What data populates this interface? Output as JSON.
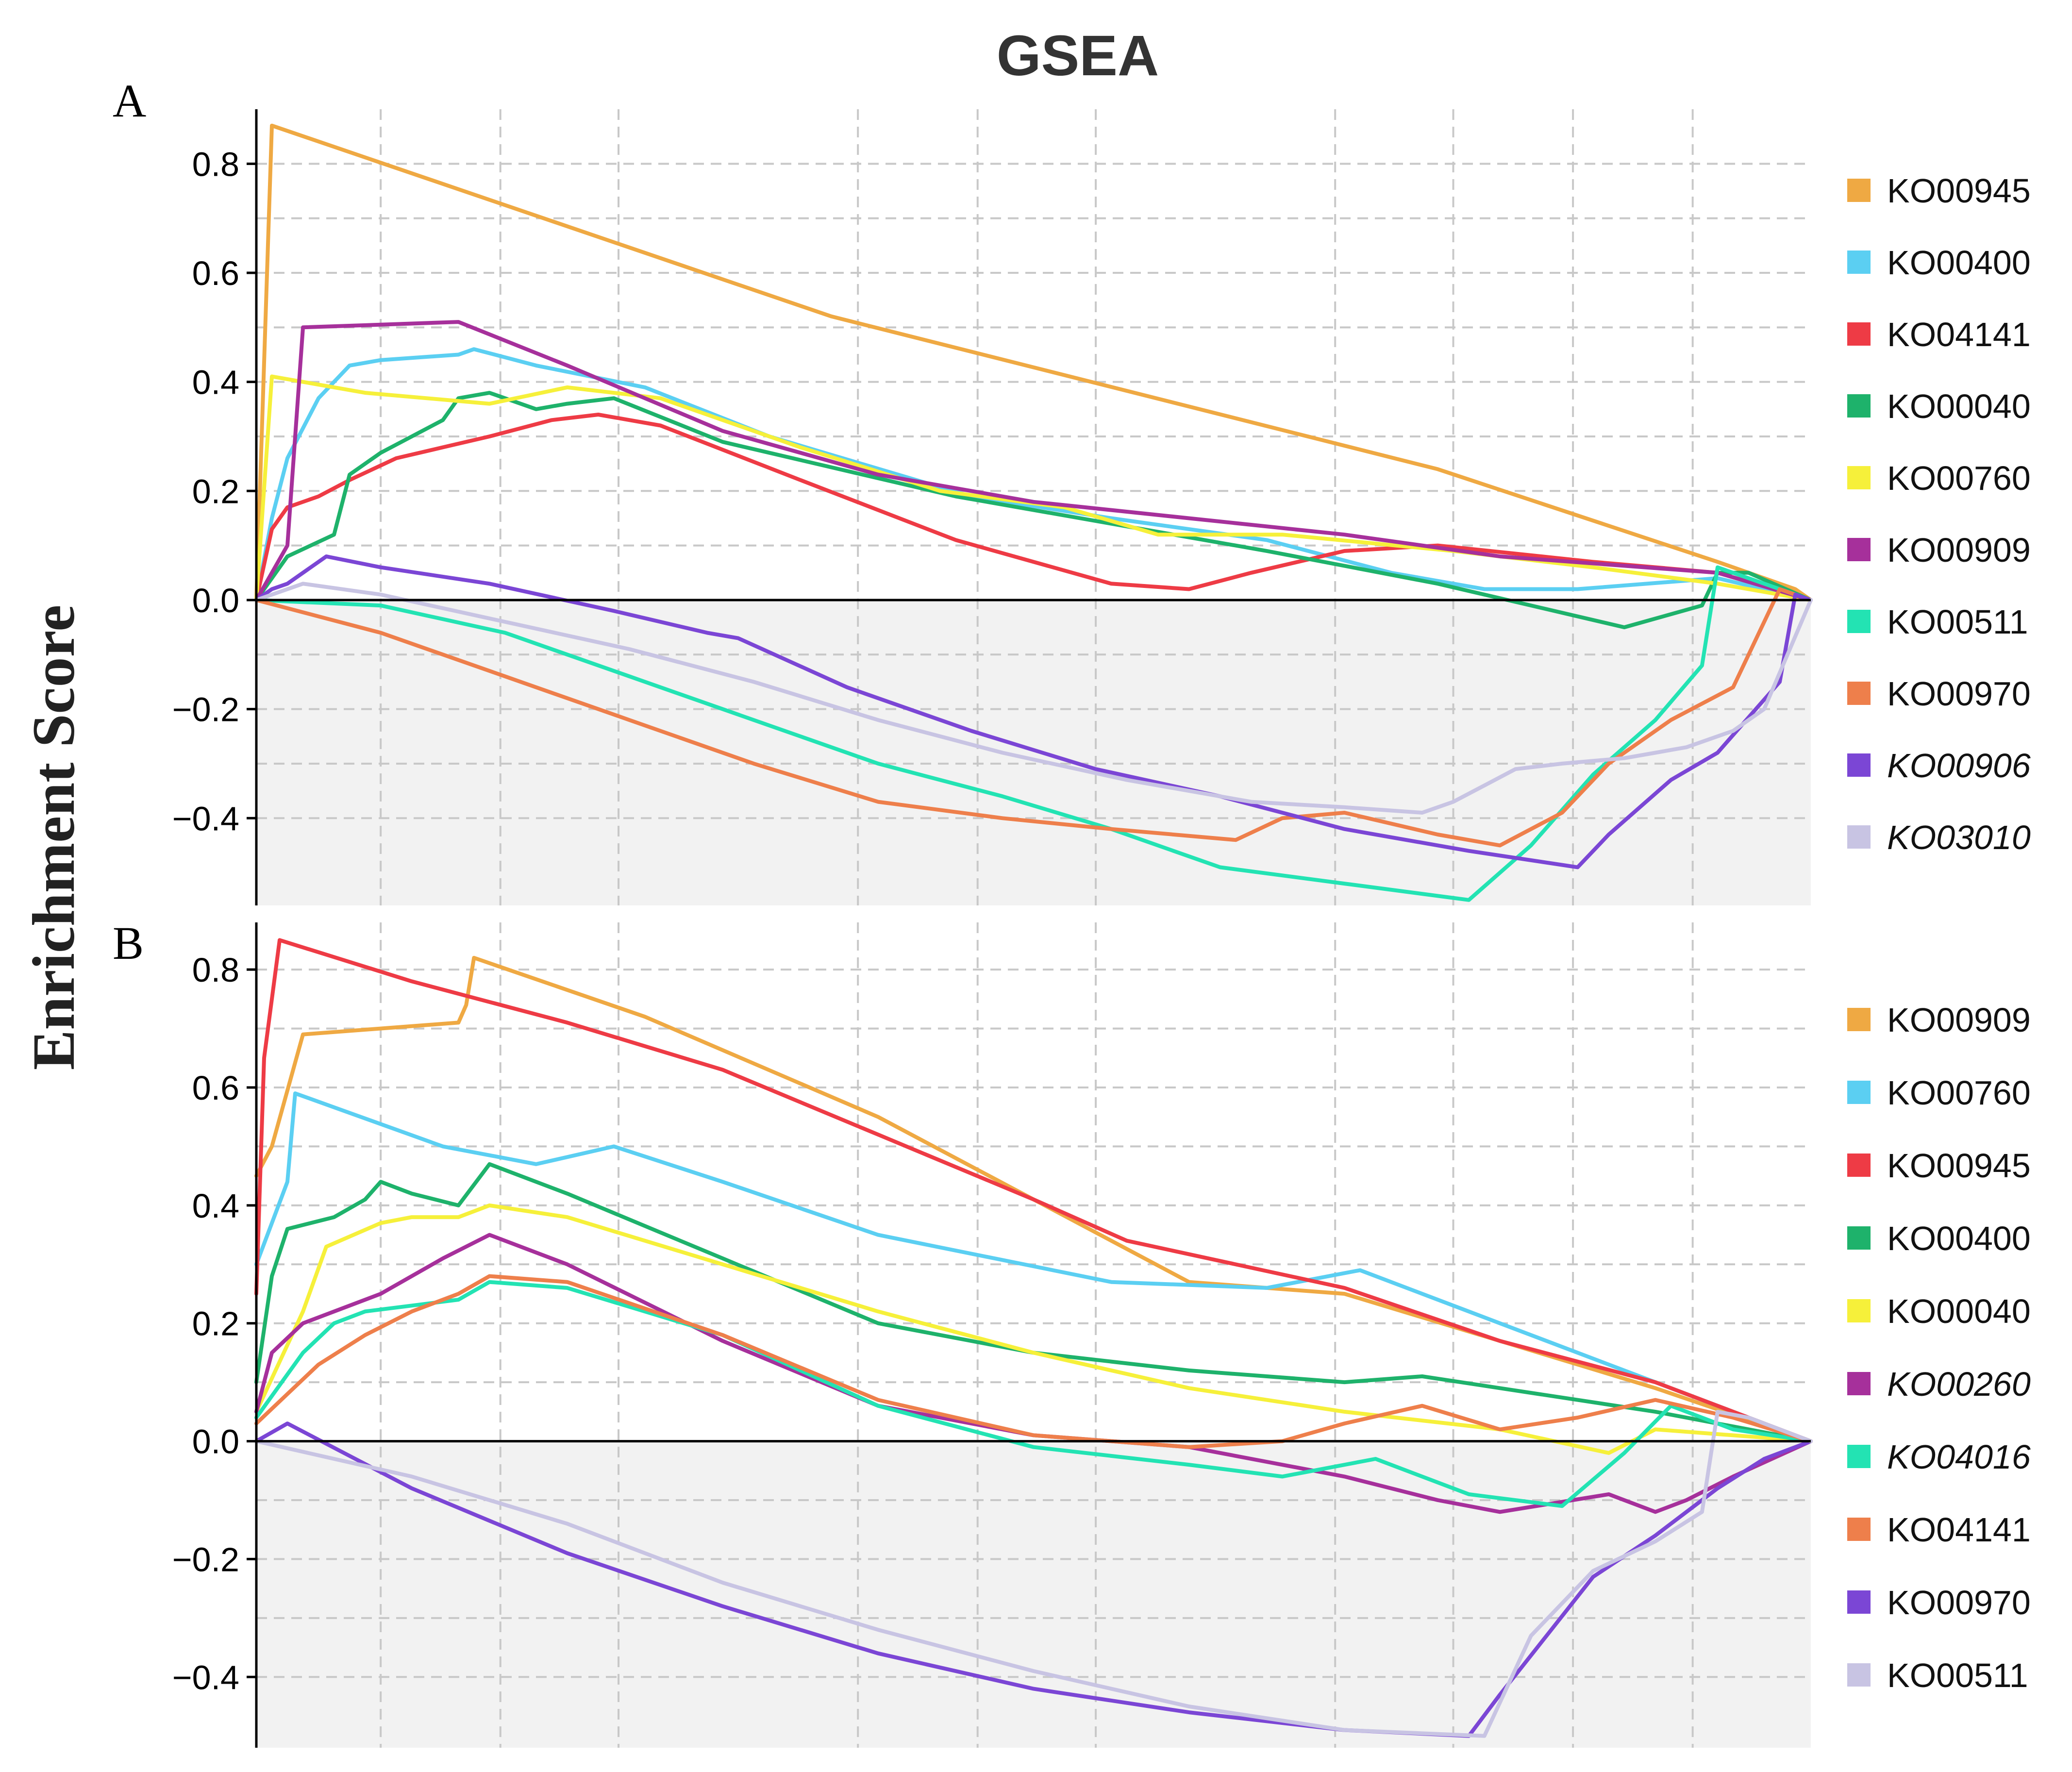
{
  "title": "GSEA",
  "ylabel": "Enrichment Score",
  "colors": [
    "#EFA943",
    "#5BCFF2",
    "#EE3B45",
    "#1EB26B",
    "#F6F03A",
    "#A6309B",
    "#23E3B3",
    "#EE7F4B",
    "#7B46D5",
    "#C8C4E3"
  ],
  "chart_data": [
    {
      "type": "line",
      "panel": "A",
      "xlim": [
        0,
        1
      ],
      "ylim": [
        -0.56,
        0.9
      ],
      "yticks": [
        -0.4,
        -0.2,
        0.0,
        0.2,
        0.4,
        0.6,
        0.8
      ],
      "ytick_labels": [
        "−0.4",
        "−0.2",
        "0.0",
        "0.2",
        "0.4",
        "0.6",
        "0.8"
      ],
      "xgrid": [
        0.08,
        0.157,
        0.233,
        0.387,
        0.464,
        0.54,
        0.694,
        0.77,
        0.847,
        0.924
      ],
      "series": [
        {
          "name": "KO00945",
          "italic": false,
          "color": "#EFA943",
          "x": [
            0,
            0.01,
            0.37,
            0.76,
            0.94,
            0.99,
            1.0
          ],
          "y": [
            0,
            0.87,
            0.52,
            0.24,
            0.07,
            0.02,
            0
          ]
        },
        {
          "name": "KO00400",
          "italic": false,
          "color": "#5BCFF2",
          "x": [
            0,
            0.01,
            0.02,
            0.04,
            0.06,
            0.08,
            0.13,
            0.14,
            0.18,
            0.25,
            0.33,
            0.46,
            0.55,
            0.65,
            0.73,
            0.79,
            0.85,
            0.94,
            1.0
          ],
          "y": [
            0,
            0.15,
            0.26,
            0.37,
            0.43,
            0.44,
            0.45,
            0.46,
            0.43,
            0.39,
            0.3,
            0.19,
            0.15,
            0.11,
            0.05,
            0.02,
            0.02,
            0.04,
            0
          ]
        },
        {
          "name": "KO04141",
          "italic": false,
          "color": "#EE3B45",
          "x": [
            0,
            0.01,
            0.02,
            0.04,
            0.06,
            0.09,
            0.12,
            0.15,
            0.19,
            0.22,
            0.26,
            0.35,
            0.45,
            0.55,
            0.6,
            0.64,
            0.7,
            0.76,
            0.86,
            0.94,
            1.0
          ],
          "y": [
            0,
            0.13,
            0.17,
            0.19,
            0.22,
            0.26,
            0.28,
            0.3,
            0.33,
            0.34,
            0.32,
            0.22,
            0.11,
            0.03,
            0.02,
            0.05,
            0.09,
            0.1,
            0.07,
            0.05,
            0
          ]
        },
        {
          "name": "KO00040",
          "italic": false,
          "color": "#1EB26B",
          "x": [
            0,
            0.02,
            0.05,
            0.06,
            0.08,
            0.1,
            0.12,
            0.13,
            0.15,
            0.18,
            0.2,
            0.23,
            0.3,
            0.45,
            0.55,
            0.65,
            0.76,
            0.88,
            0.93,
            0.94,
            0.96,
            1.0
          ],
          "y": [
            0,
            0.08,
            0.12,
            0.23,
            0.27,
            0.3,
            0.33,
            0.37,
            0.38,
            0.35,
            0.36,
            0.37,
            0.29,
            0.19,
            0.14,
            0.09,
            0.03,
            -0.05,
            -0.01,
            0.05,
            0.05,
            0
          ]
        },
        {
          "name": "KO00760",
          "italic": false,
          "color": "#F6F03A",
          "x": [
            0,
            0.01,
            0.07,
            0.15,
            0.2,
            0.26,
            0.35,
            0.44,
            0.52,
            0.58,
            0.66,
            0.77,
            0.86,
            0.94,
            1.0
          ],
          "y": [
            0,
            0.41,
            0.38,
            0.36,
            0.39,
            0.37,
            0.28,
            0.2,
            0.17,
            0.12,
            0.12,
            0.09,
            0.06,
            0.03,
            0
          ]
        },
        {
          "name": "KO00909",
          "italic": false,
          "color": "#A6309B",
          "x": [
            0,
            0.02,
            0.03,
            0.13,
            0.2,
            0.3,
            0.4,
            0.5,
            0.6,
            0.7,
            0.8,
            0.94,
            1.0
          ],
          "y": [
            0,
            0.1,
            0.5,
            0.51,
            0.43,
            0.31,
            0.23,
            0.18,
            0.15,
            0.12,
            0.08,
            0.05,
            0
          ]
        },
        {
          "name": "KO00511",
          "italic": false,
          "color": "#23E3B3",
          "x": [
            0,
            0.08,
            0.16,
            0.24,
            0.32,
            0.4,
            0.48,
            0.55,
            0.62,
            0.7,
            0.78,
            0.82,
            0.86,
            0.9,
            0.93,
            0.94,
            0.95,
            0.98,
            1.0
          ],
          "y": [
            0,
            -0.01,
            -0.06,
            -0.14,
            -0.22,
            -0.3,
            -0.36,
            -0.42,
            -0.49,
            -0.52,
            -0.55,
            -0.45,
            -0.32,
            -0.22,
            -0.12,
            0.06,
            0.05,
            0.02,
            0
          ]
        },
        {
          "name": "KO00970",
          "italic": false,
          "color": "#EE7F4B",
          "x": [
            0,
            0.08,
            0.16,
            0.24,
            0.32,
            0.4,
            0.48,
            0.55,
            0.63,
            0.66,
            0.7,
            0.76,
            0.8,
            0.84,
            0.87,
            0.91,
            0.95,
            0.98,
            1.0
          ],
          "y": [
            0,
            -0.06,
            -0.14,
            -0.22,
            -0.3,
            -0.37,
            -0.4,
            -0.42,
            -0.44,
            -0.4,
            -0.39,
            -0.43,
            -0.45,
            -0.39,
            -0.3,
            -0.22,
            -0.16,
            0.02,
            0
          ]
        },
        {
          "name": "KO00906",
          "italic": true,
          "color": "#7B46D5",
          "x": [
            0,
            0.01,
            0.02,
            0.045,
            0.08,
            0.15,
            0.23,
            0.29,
            0.31,
            0.38,
            0.46,
            0.54,
            0.62,
            0.7,
            0.78,
            0.85,
            0.87,
            0.91,
            0.94,
            0.98,
            0.99,
            1.0
          ],
          "y": [
            0,
            0.02,
            0.03,
            0.08,
            0.06,
            0.03,
            -0.02,
            -0.06,
            -0.07,
            -0.16,
            -0.24,
            -0.31,
            -0.36,
            -0.42,
            -0.46,
            -0.49,
            -0.43,
            -0.33,
            -0.28,
            -0.15,
            0.01,
            0
          ]
        },
        {
          "name": "KO03010",
          "italic": true,
          "color": "#C8C4E3",
          "x": [
            0,
            0.03,
            0.08,
            0.16,
            0.24,
            0.32,
            0.4,
            0.48,
            0.56,
            0.64,
            0.7,
            0.75,
            0.77,
            0.79,
            0.81,
            0.84,
            0.88,
            0.9,
            0.92,
            0.95,
            0.97,
            0.985,
            1.0
          ],
          "y": [
            0,
            0.03,
            0.01,
            -0.04,
            -0.09,
            -0.15,
            -0.22,
            -0.28,
            -0.33,
            -0.37,
            -0.38,
            -0.39,
            -0.37,
            -0.34,
            -0.31,
            -0.3,
            -0.29,
            -0.28,
            -0.27,
            -0.24,
            -0.2,
            -0.1,
            0
          ]
        }
      ]
    },
    {
      "type": "line",
      "panel": "B",
      "xlim": [
        0,
        1
      ],
      "ylim": [
        -0.52,
        0.88
      ],
      "yticks": [
        -0.4,
        -0.2,
        0.0,
        0.2,
        0.4,
        0.6,
        0.8
      ],
      "ytick_labels": [
        "−0.4",
        "−0.2",
        "0.0",
        "0.2",
        "0.4",
        "0.6",
        "0.8"
      ],
      "xgrid": [
        0.08,
        0.157,
        0.233,
        0.387,
        0.464,
        0.54,
        0.694,
        0.77,
        0.847,
        0.924
      ],
      "series": [
        {
          "name": "KO00909",
          "italic": false,
          "color": "#EFA943",
          "x": [
            0,
            0.01,
            0.03,
            0.13,
            0.135,
            0.14,
            0.25,
            0.4,
            0.6,
            0.7,
            0.8,
            0.9,
            1.0
          ],
          "y": [
            0.45,
            0.5,
            0.69,
            0.71,
            0.74,
            0.82,
            0.72,
            0.55,
            0.27,
            0.25,
            0.17,
            0.09,
            0
          ]
        },
        {
          "name": "KO00760",
          "italic": false,
          "color": "#5BCFF2",
          "x": [
            0,
            0.02,
            0.025,
            0.12,
            0.18,
            0.23,
            0.3,
            0.4,
            0.55,
            0.65,
            0.71,
            0.8,
            0.9,
            1.0
          ],
          "y": [
            0.3,
            0.44,
            0.59,
            0.5,
            0.47,
            0.5,
            0.44,
            0.35,
            0.27,
            0.26,
            0.29,
            0.2,
            0.1,
            0
          ]
        },
        {
          "name": "KO00945",
          "italic": false,
          "color": "#EE3B45",
          "x": [
            0,
            0.005,
            0.015,
            0.1,
            0.2,
            0.3,
            0.4,
            0.5,
            0.56,
            0.7,
            0.8,
            0.9,
            1.0
          ],
          "y": [
            0.25,
            0.65,
            0.85,
            0.78,
            0.71,
            0.63,
            0.52,
            0.41,
            0.34,
            0.26,
            0.17,
            0.1,
            0
          ]
        },
        {
          "name": "KO00400",
          "italic": false,
          "color": "#1EB26B",
          "x": [
            0,
            0.01,
            0.02,
            0.05,
            0.07,
            0.08,
            0.1,
            0.13,
            0.15,
            0.2,
            0.3,
            0.4,
            0.5,
            0.6,
            0.7,
            0.75,
            0.8,
            0.9,
            1.0
          ],
          "y": [
            0.1,
            0.28,
            0.36,
            0.38,
            0.41,
            0.44,
            0.42,
            0.4,
            0.47,
            0.42,
            0.31,
            0.2,
            0.15,
            0.12,
            0.1,
            0.11,
            0.09,
            0.05,
            0
          ]
        },
        {
          "name": "KO00040",
          "italic": false,
          "color": "#F6F03A",
          "x": [
            0,
            0.03,
            0.045,
            0.08,
            0.1,
            0.13,
            0.15,
            0.2,
            0.3,
            0.4,
            0.5,
            0.6,
            0.7,
            0.8,
            0.87,
            0.9,
            1.0
          ],
          "y": [
            0.05,
            0.22,
            0.33,
            0.37,
            0.38,
            0.38,
            0.4,
            0.38,
            0.3,
            0.22,
            0.15,
            0.09,
            0.05,
            0.02,
            -0.02,
            0.02,
            0
          ]
        },
        {
          "name": "KO00260",
          "italic": true,
          "color": "#A6309B",
          "x": [
            0,
            0.01,
            0.03,
            0.08,
            0.12,
            0.15,
            0.2,
            0.3,
            0.4,
            0.5,
            0.6,
            0.7,
            0.76,
            0.8,
            0.87,
            0.9,
            0.92,
            0.95,
            1.0
          ],
          "y": [
            0.05,
            0.15,
            0.2,
            0.25,
            0.31,
            0.35,
            0.3,
            0.17,
            0.06,
            0.01,
            -0.01,
            -0.06,
            -0.1,
            -0.12,
            -0.09,
            -0.12,
            -0.1,
            -0.06,
            0
          ]
        },
        {
          "name": "KO04016",
          "italic": true,
          "color": "#23E3B3",
          "x": [
            0,
            0.03,
            0.05,
            0.07,
            0.1,
            0.13,
            0.15,
            0.2,
            0.3,
            0.4,
            0.5,
            0.6,
            0.66,
            0.72,
            0.78,
            0.84,
            0.88,
            0.91,
            0.95,
            1.0
          ],
          "y": [
            0.04,
            0.15,
            0.2,
            0.22,
            0.23,
            0.24,
            0.27,
            0.26,
            0.18,
            0.06,
            -0.01,
            -0.04,
            -0.06,
            -0.03,
            -0.09,
            -0.11,
            -0.02,
            0.06,
            0.02,
            0
          ]
        },
        {
          "name": "KO04141",
          "italic": false,
          "color": "#EE7F4B",
          "x": [
            0,
            0.02,
            0.04,
            0.07,
            0.1,
            0.13,
            0.15,
            0.2,
            0.3,
            0.4,
            0.5,
            0.6,
            0.66,
            0.7,
            0.75,
            0.8,
            0.85,
            0.9,
            0.95,
            1.0
          ],
          "y": [
            0.03,
            0.08,
            0.13,
            0.18,
            0.22,
            0.25,
            0.28,
            0.27,
            0.18,
            0.07,
            0.01,
            -0.01,
            0.0,
            0.03,
            0.06,
            0.02,
            0.04,
            0.07,
            0.04,
            0
          ]
        },
        {
          "name": "KO00970",
          "italic": false,
          "color": "#7B46D5",
          "x": [
            0,
            0.02,
            0.1,
            0.2,
            0.3,
            0.4,
            0.5,
            0.6,
            0.7,
            0.78,
            0.8,
            0.83,
            0.86,
            0.9,
            0.94,
            0.97,
            1.0
          ],
          "y": [
            0,
            0.03,
            -0.08,
            -0.19,
            -0.28,
            -0.36,
            -0.42,
            -0.46,
            -0.49,
            -0.5,
            -0.43,
            -0.33,
            -0.23,
            -0.16,
            -0.08,
            -0.03,
            0
          ]
        },
        {
          "name": "KO00511",
          "italic": false,
          "color": "#C8C4E3",
          "x": [
            0,
            0.1,
            0.2,
            0.3,
            0.4,
            0.5,
            0.6,
            0.7,
            0.79,
            0.82,
            0.86,
            0.9,
            0.93,
            0.94,
            0.96,
            1.0
          ],
          "y": [
            0,
            -0.06,
            -0.14,
            -0.24,
            -0.32,
            -0.39,
            -0.45,
            -0.49,
            -0.5,
            -0.33,
            -0.22,
            -0.17,
            -0.12,
            0.05,
            0.04,
            0
          ]
        }
      ]
    }
  ]
}
